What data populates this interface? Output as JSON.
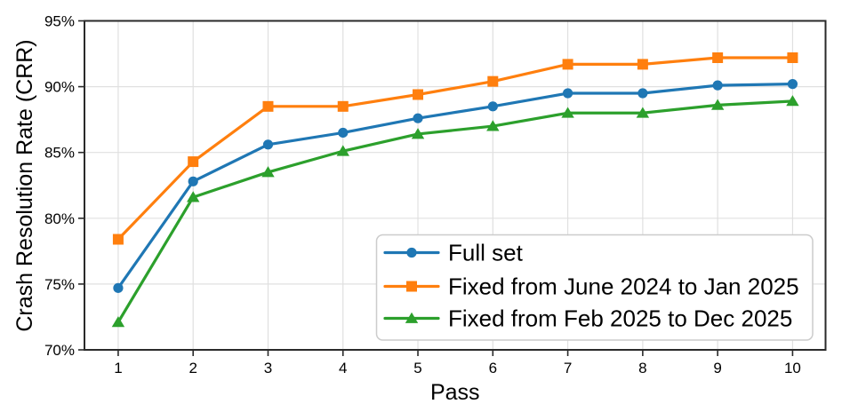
{
  "figure": {
    "background": "#ffffff",
    "grid_color": "#e0e0e0",
    "spine_color": "#2a2a2a",
    "text_color": "#000000",
    "legend_border_color": "#cccccc",
    "legend_background": "#ffffff"
  },
  "chart_data": {
    "type": "line",
    "title": "",
    "xlabel": "Pass",
    "ylabel": "Crash Resolution Rate (CRR)",
    "x": [
      1,
      2,
      3,
      4,
      5,
      6,
      7,
      8,
      9,
      10
    ],
    "x_tick_labels": [
      "1",
      "2",
      "3",
      "4",
      "5",
      "6",
      "7",
      "8",
      "9",
      "10"
    ],
    "y_tick_values": [
      70,
      75,
      80,
      85,
      90,
      95
    ],
    "y_tick_labels": [
      "70%",
      "75%",
      "80%",
      "85%",
      "90%",
      "95%"
    ],
    "xlim": [
      0.55,
      10.44
    ],
    "ylim": [
      70,
      95
    ],
    "grid": true,
    "legend_position": "lower right inside",
    "series": [
      {
        "name": "Full set",
        "color": "#1f77b4",
        "marker": "circle",
        "values": [
          74.7,
          82.8,
          85.6,
          86.5,
          87.6,
          88.5,
          89.5,
          89.5,
          90.1,
          90.2
        ]
      },
      {
        "name": "Fixed from June 2024 to Jan 2025",
        "color": "#ff7f0e",
        "marker": "square",
        "values": [
          78.4,
          84.3,
          88.5,
          88.5,
          89.4,
          90.4,
          91.7,
          91.7,
          92.2,
          92.2
        ]
      },
      {
        "name": "Fixed from Feb 2025 to Dec 2025",
        "color": "#2ca02c",
        "marker": "triangle",
        "values": [
          72.1,
          81.6,
          83.5,
          85.1,
          86.4,
          87.0,
          88.0,
          88.0,
          88.6,
          88.9
        ]
      }
    ]
  }
}
